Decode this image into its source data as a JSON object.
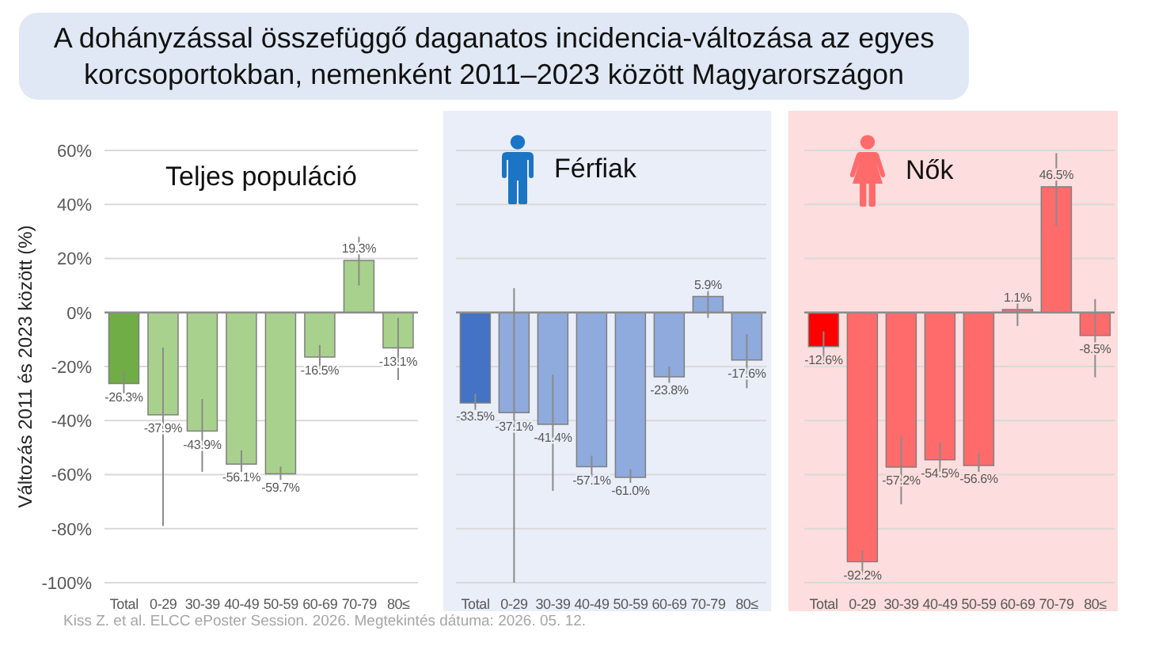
{
  "chart_data": [
    {
      "type": "other",
      "title": "A dohányzással összefüggő daganatos incidencia-változása az egyes korcsoportokban, nemenként 2011–2023 között Magyarországon",
      "annotations": [
        "Kiss Z. et al. ELCC ePoster Session. 2026. Megtekintés dátuma: 2026. 05. 12."
      ]
    },
    {
      "type": "bar",
      "title": "Teljes populáció",
      "ylabel": "Változás 2011 és 2023 között (%)",
      "categories": [
        "Total",
        "0-29",
        "30-39",
        "40-49",
        "50-59",
        "60-69",
        "70-79",
        "80≤"
      ],
      "values": [
        -26.3,
        -37.9,
        -43.9,
        -56.1,
        -59.7,
        -16.5,
        19.3,
        -13.1
      ],
      "colors": [
        "#70ad47",
        "#a9d18e",
        "#a9d18e",
        "#a9d18e",
        "#a9d18e",
        "#a9d18e",
        "#a9d18e",
        "#a9d18e"
      ],
      "value_labels": [
        "-26.3%",
        "-37.9%",
        "-43.9%",
        "-56.1%",
        "-59.7%",
        "-16.5%",
        "19.3%",
        "-13.1%"
      ],
      "errors": [
        [
          -30,
          -22
        ],
        [
          -79,
          -13
        ],
        [
          -59,
          -32
        ],
        [
          -59,
          -51
        ],
        [
          -62,
          -57
        ],
        [
          -21,
          -12
        ],
        [
          10,
          28
        ],
        [
          -25,
          -2
        ]
      ],
      "ylim": [
        -100,
        60
      ],
      "yticks": [
        {
          "value": -100,
          "label": "-100%"
        },
        {
          "value": -80,
          "label": "-80%"
        },
        {
          "value": -60,
          "label": "-60%"
        },
        {
          "value": -40,
          "label": "-40%"
        },
        {
          "value": -20,
          "label": "-20%"
        },
        {
          "value": 0,
          "label": "0%"
        },
        {
          "value": 20,
          "label": "20%"
        },
        {
          "value": 40,
          "label": "40%"
        },
        {
          "value": 60,
          "label": "60%"
        }
      ],
      "grid": "y"
    },
    {
      "type": "bar",
      "title": "Férfiak",
      "categories": [
        "Total",
        "0-29",
        "30-39",
        "40-49",
        "50-59",
        "60-69",
        "70-79",
        "80≤"
      ],
      "values": [
        -33.5,
        -37.1,
        -41.4,
        -57.1,
        -61.0,
        -23.8,
        5.9,
        -17.6
      ],
      "colors": [
        "#4472c4",
        "#8faadc",
        "#8faadc",
        "#8faadc",
        "#8faadc",
        "#8faadc",
        "#8faadc",
        "#8faadc"
      ],
      "value_labels": [
        "-33.5%",
        "-37.1%",
        "-41.4%",
        "-57.1%",
        "-61.0%",
        "-23.8%",
        "5.9%",
        "-17.6%"
      ],
      "errors": [
        [
          -36,
          -30
        ],
        [
          -100,
          9
        ],
        [
          -66,
          -23
        ],
        [
          -61,
          -53
        ],
        [
          -63,
          -58
        ],
        [
          -26,
          -20
        ],
        [
          -2,
          8
        ],
        [
          -28,
          -8
        ]
      ],
      "ylim": [
        -100,
        60
      ],
      "yticks": [
        -100,
        -80,
        -60,
        -40,
        -20,
        0,
        20,
        40,
        60
      ],
      "grid": "y",
      "tick_labels": "x",
      "bands": [
        {
          "axis": "x",
          "from": "Total",
          "to": "80≤",
          "color": "#e9eef8"
        }
      ]
    },
    {
      "type": "bar",
      "title": "Nők",
      "categories": [
        "Total",
        "0-29",
        "30-39",
        "40-49",
        "50-59",
        "60-69",
        "70-79",
        "80≤"
      ],
      "values": [
        -12.6,
        -92.2,
        -57.2,
        -54.5,
        -56.6,
        1.1,
        46.5,
        -8.5
      ],
      "colors": [
        "#ff0000",
        "#ff6b6b",
        "#ff6b6b",
        "#ff6b6b",
        "#ff6b6b",
        "#ff6b6b",
        "#ff6b6b",
        "#ff6b6b"
      ],
      "value_labels": [
        "-12.6%",
        "-92.2%",
        "-57.2%",
        "-54.5%",
        "-56.6%",
        "1.1%",
        "46.5%",
        "-8.5%"
      ],
      "errors": [
        [
          -19,
          -7
        ],
        [
          -97,
          -88
        ],
        [
          -71,
          -46
        ],
        [
          -59,
          -48
        ],
        [
          -59,
          -52
        ],
        [
          -5,
          5
        ],
        [
          32,
          59
        ],
        [
          -24,
          5
        ]
      ],
      "ylim": [
        -100,
        60
      ],
      "yticks": [
        -100,
        -80,
        -60,
        -40,
        -20,
        0,
        20,
        40,
        60
      ],
      "grid": "y",
      "tick_labels": "x",
      "bands": [
        {
          "axis": "x",
          "from": "Total",
          "to": "80≤",
          "color": "#fddddd"
        }
      ]
    }
  ]
}
